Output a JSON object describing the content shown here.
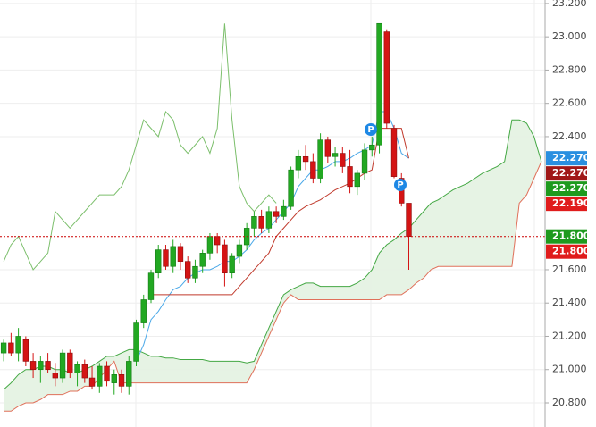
{
  "chart_data": {
    "type": "candlestick",
    "ylim": [
      20.655,
      23.221
    ],
    "yticks": [
      {
        "value": 23.2,
        "label": "23.200"
      },
      {
        "value": 23.0,
        "label": "23.000"
      },
      {
        "value": 22.8,
        "label": "22.800"
      },
      {
        "value": 22.6,
        "label": "22.600"
      },
      {
        "value": 22.4,
        "label": "22.400"
      },
      {
        "value": 21.6,
        "label": "21.600"
      },
      {
        "value": 21.4,
        "label": "21.400"
      },
      {
        "value": 21.2,
        "label": "21.200"
      },
      {
        "value": 21.0,
        "label": "21.000"
      },
      {
        "value": 20.8,
        "label": "20.800"
      }
    ],
    "grid": true,
    "candles": {
      "up_color": "#22a822",
      "down_color": "#d41414",
      "open": [
        21.1,
        21.16,
        21.1,
        21.18,
        21.05,
        21.0,
        21.05,
        20.98,
        20.95,
        21.1,
        20.98,
        21.03,
        20.95,
        20.9,
        21.02,
        20.92,
        20.97,
        20.9,
        21.05,
        21.28,
        21.42,
        21.58,
        21.72,
        21.62,
        21.74,
        21.65,
        21.55,
        21.62,
        21.7,
        21.8,
        21.75,
        21.58,
        21.68,
        21.75,
        21.85,
        21.92,
        21.85,
        21.95,
        21.92,
        21.98,
        22.2,
        22.28,
        22.25,
        22.15,
        22.38,
        22.28,
        22.3,
        22.22,
        22.1,
        22.18,
        22.32,
        22.35,
        23.03,
        22.45,
        22.15,
        22.0
      ],
      "high": [
        21.18,
        21.22,
        21.25,
        21.2,
        21.1,
        21.08,
        21.1,
        21.04,
        21.12,
        21.12,
        21.05,
        21.06,
        21.02,
        21.04,
        21.05,
        21.0,
        21.0,
        21.08,
        21.3,
        21.45,
        21.6,
        21.75,
        21.75,
        21.78,
        21.76,
        21.68,
        21.66,
        21.72,
        21.82,
        21.82,
        21.78,
        21.7,
        21.78,
        21.88,
        21.95,
        21.96,
        21.98,
        21.98,
        22.02,
        22.22,
        22.32,
        22.35,
        22.3,
        22.42,
        22.4,
        22.34,
        22.34,
        22.32,
        22.2,
        22.36,
        22.4,
        23.08,
        23.04,
        22.47,
        22.18,
        22.0
      ],
      "low": [
        21.05,
        21.08,
        21.05,
        21.02,
        20.95,
        20.92,
        20.98,
        20.9,
        20.92,
        20.95,
        20.9,
        20.92,
        20.88,
        20.86,
        20.9,
        20.85,
        20.86,
        20.85,
        21.02,
        21.25,
        21.4,
        21.55,
        21.6,
        21.58,
        21.6,
        21.52,
        21.52,
        21.58,
        21.66,
        21.7,
        21.5,
        21.55,
        21.64,
        21.72,
        21.8,
        21.82,
        21.82,
        21.88,
        21.9,
        21.96,
        22.15,
        22.2,
        22.12,
        22.12,
        22.24,
        22.22,
        22.18,
        22.06,
        22.05,
        22.14,
        22.28,
        22.3,
        22.45,
        22.15,
        21.98,
        21.6
      ],
      "close": [
        21.16,
        21.1,
        21.2,
        21.05,
        21.0,
        21.05,
        21.0,
        20.95,
        21.1,
        20.98,
        21.03,
        20.95,
        20.9,
        21.02,
        20.93,
        20.97,
        20.9,
        21.05,
        21.28,
        21.42,
        21.58,
        21.72,
        21.62,
        21.74,
        21.65,
        21.55,
        21.62,
        21.7,
        21.8,
        21.75,
        21.58,
        21.68,
        21.75,
        21.85,
        21.92,
        21.85,
        21.95,
        21.92,
        21.98,
        22.2,
        22.28,
        22.25,
        22.15,
        22.38,
        22.28,
        22.3,
        22.22,
        22.1,
        22.18,
        22.32,
        22.35,
        23.08,
        22.48,
        22.16,
        22.0,
        21.8
      ]
    },
    "series": [
      {
        "color": "#7cbf6c",
        "values": [
          21.65,
          21.75,
          21.8,
          21.7,
          21.6,
          21.65,
          21.7,
          21.95,
          21.9,
          21.85,
          21.9,
          21.95,
          22.0,
          22.05,
          22.05,
          22.05,
          22.1,
          22.2,
          22.35,
          22.5,
          22.45,
          22.4,
          22.55,
          22.5,
          22.35,
          22.3,
          22.35,
          22.4,
          22.3,
          22.45,
          23.08,
          22.5,
          22.1,
          22.0,
          21.95,
          22.0,
          22.05,
          22.0,
          null,
          null,
          null,
          null,
          null,
          null,
          null,
          null,
          null,
          null,
          null,
          null,
          null,
          null,
          null,
          null,
          null,
          null,
          null,
          null,
          null,
          null,
          null,
          null,
          null,
          null,
          null,
          null,
          null,
          null,
          null,
          null,
          null,
          null,
          null,
          null
        ]
      },
      {
        "color": "#44a844",
        "values": [
          20.88,
          20.92,
          20.97,
          21.0,
          21.0,
          21.02,
          21.02,
          21.0,
          21.0,
          20.98,
          20.98,
          21.0,
          21.02,
          21.05,
          21.08,
          21.08,
          21.1,
          21.12,
          21.12,
          21.1,
          21.08,
          21.08,
          21.07,
          21.07,
          21.06,
          21.06,
          21.06,
          21.06,
          21.05,
          21.05,
          21.05,
          21.05,
          21.05,
          21.04,
          21.05,
          21.15,
          21.25,
          21.35,
          21.45,
          21.48,
          21.5,
          21.52,
          21.52,
          21.5,
          21.5,
          21.5,
          21.5,
          21.5,
          21.52,
          21.55,
          21.6,
          21.7,
          21.75,
          21.78,
          21.82,
          21.85,
          21.9,
          21.95,
          22.0,
          22.02,
          22.05,
          22.08,
          22.1,
          22.12,
          22.15,
          22.18,
          22.2,
          22.22,
          22.25,
          22.5,
          22.5,
          22.48,
          22.4,
          22.25
        ]
      },
      {
        "color": "#e0705a",
        "values": [
          20.75,
          20.75,
          20.78,
          20.8,
          20.8,
          20.82,
          20.85,
          20.85,
          20.85,
          20.87,
          20.87,
          20.9,
          20.9,
          20.95,
          21.0,
          21.05,
          20.92,
          20.92,
          20.92,
          20.92,
          20.92,
          20.92,
          20.92,
          20.92,
          20.92,
          20.92,
          20.92,
          20.92,
          20.92,
          20.92,
          20.92,
          20.92,
          20.92,
          20.92,
          21.0,
          21.1,
          21.2,
          21.3,
          21.4,
          21.45,
          21.42,
          21.42,
          21.42,
          21.42,
          21.42,
          21.42,
          21.42,
          21.42,
          21.42,
          21.42,
          21.42,
          21.42,
          21.45,
          21.45,
          21.45,
          21.48,
          21.52,
          21.55,
          21.6,
          21.62,
          21.62,
          21.62,
          21.62,
          21.62,
          21.62,
          21.62,
          21.62,
          21.62,
          21.62,
          21.62,
          22.0,
          22.05,
          22.15,
          22.25
        ]
      },
      {
        "color": "#4aa8e8",
        "values": [
          null,
          null,
          null,
          null,
          null,
          null,
          null,
          null,
          null,
          null,
          null,
          null,
          null,
          null,
          null,
          null,
          null,
          null,
          21.05,
          21.15,
          21.3,
          21.35,
          21.42,
          21.48,
          21.5,
          21.55,
          21.58,
          21.6,
          21.6,
          21.62,
          21.65,
          21.65,
          21.68,
          21.72,
          21.78,
          21.82,
          21.85,
          21.9,
          21.95,
          22.0,
          22.1,
          22.15,
          22.2,
          22.2,
          22.22,
          22.25,
          22.25,
          22.27,
          22.3,
          22.32,
          22.35,
          22.55,
          22.55,
          22.45,
          22.3,
          22.27,
          null,
          null,
          null,
          null,
          null,
          null,
          null,
          null,
          null,
          null,
          null,
          null,
          null,
          null,
          null,
          null,
          null,
          null
        ]
      },
      {
        "color": "#c0392b",
        "values": [
          null,
          null,
          null,
          null,
          null,
          null,
          null,
          null,
          null,
          null,
          null,
          null,
          null,
          null,
          null,
          null,
          null,
          null,
          null,
          null,
          21.45,
          21.45,
          21.45,
          21.45,
          21.45,
          21.45,
          21.45,
          21.45,
          21.45,
          21.45,
          21.45,
          21.45,
          21.5,
          21.55,
          21.6,
          21.65,
          21.7,
          21.8,
          21.85,
          21.9,
          21.95,
          21.98,
          22.0,
          22.02,
          22.05,
          22.08,
          22.1,
          22.12,
          22.15,
          22.18,
          22.2,
          22.45,
          22.45,
          22.45,
          22.45,
          22.27,
          null,
          null,
          null,
          null,
          null,
          null,
          null,
          null,
          null,
          null,
          null,
          null,
          null,
          null,
          null,
          null,
          null,
          null
        ]
      }
    ],
    "current_price": {
      "value": 21.8,
      "color": "#cc0000"
    },
    "price_labels": [
      {
        "value": 22.27,
        "label": "22.270",
        "color": "#2a8fe0"
      },
      {
        "value": 22.27,
        "label": "22.270",
        "color": "#a01818"
      },
      {
        "value": 22.27,
        "label": "22.270",
        "color": "#1e9a1e"
      },
      {
        "value": 22.19,
        "label": "22.190",
        "color": "#e01c1c"
      },
      {
        "value": 21.8,
        "label": "21.800",
        "color": "#1e9a1e"
      },
      {
        "value": 21.8,
        "label": "21.800",
        "color": "#e01c1c"
      }
    ],
    "markers": [
      {
        "label": "P"
      },
      {
        "label": "P"
      }
    ]
  }
}
